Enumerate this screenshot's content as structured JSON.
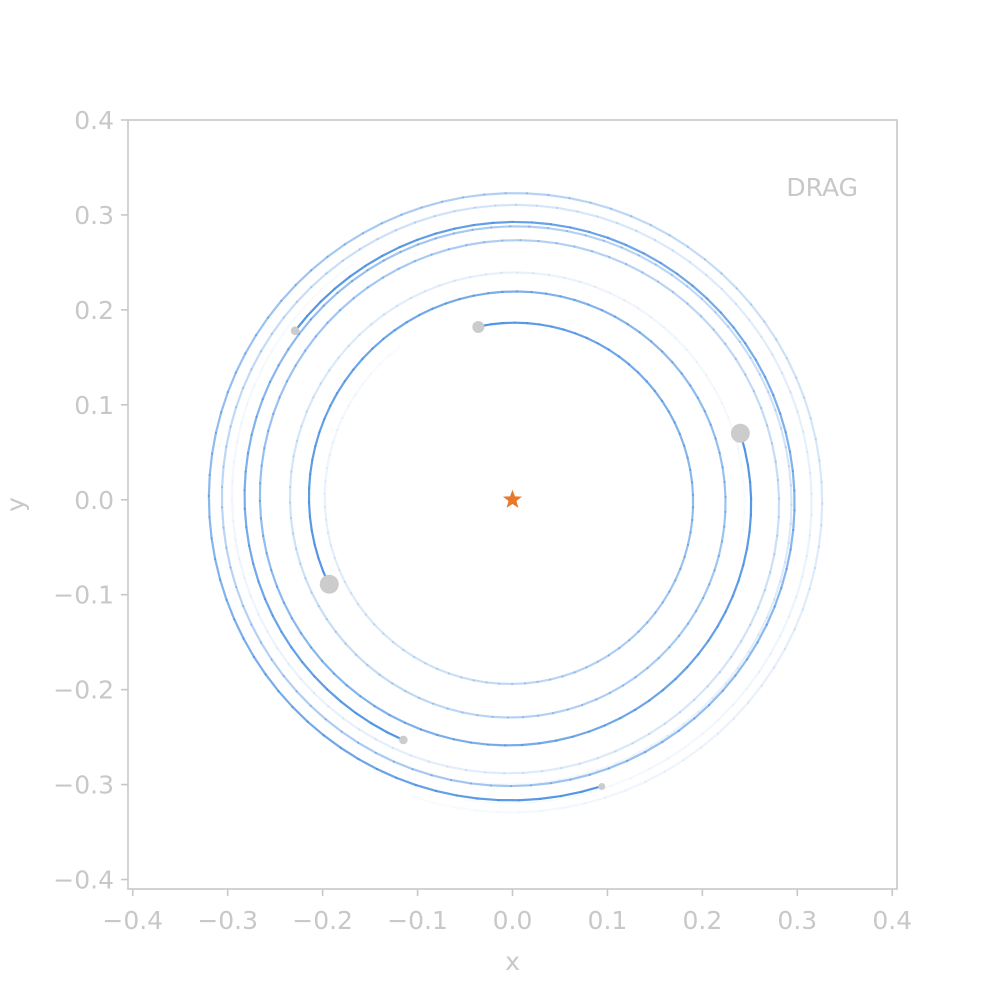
{
  "chart_data": {
    "type": "line",
    "title": "",
    "xlabel": "x",
    "ylabel": "y",
    "xlim": [
      -0.405,
      0.405
    ],
    "ylim": [
      -0.41,
      0.4
    ],
    "xticks": [
      -0.4,
      -0.3,
      -0.2,
      -0.1,
      0.0,
      0.1,
      0.2,
      0.3,
      0.4
    ],
    "yticks": [
      -0.4,
      -0.3,
      -0.2,
      -0.1,
      0.0,
      0.1,
      0.2,
      0.3,
      0.4
    ],
    "xtick_labels": [
      "−0.4",
      "−0.3",
      "−0.2",
      "−0.1",
      "0.0",
      "0.1",
      "0.2",
      "0.3",
      "0.4"
    ],
    "ytick_labels": [
      "−0.4",
      "−0.3",
      "−0.2",
      "−0.1",
      "0.0",
      "0.1",
      "0.2",
      "0.3",
      "0.4"
    ],
    "grid": false,
    "annotation": "DRAG",
    "annotation_position": "top-right",
    "star": {
      "x": 0.0,
      "y": 0.0,
      "color": "#e8782a"
    },
    "trail_color": "#4a90e2",
    "body_color": "#cccccc",
    "axis_color": "#c8c8c8",
    "bodies": [
      {
        "x": 0.24,
        "y": 0.07,
        "size": 11,
        "start_radius": 0.3,
        "end_radius": 0.25,
        "revolutions": 1.7
      },
      {
        "x": -0.193,
        "y": -0.089,
        "size": 11,
        "start_radius": 0.245,
        "end_radius": 0.213,
        "revolutions": 1.6
      },
      {
        "x": -0.036,
        "y": 0.182,
        "size": 6,
        "start_radius": 0.2,
        "end_radius": 0.186,
        "revolutions": 0.93
      },
      {
        "x": -0.229,
        "y": 0.178,
        "size": 4,
        "start_radius": 0.32,
        "end_radius": 0.29,
        "revolutions": 1.67
      },
      {
        "x": -0.115,
        "y": -0.253,
        "size": 4,
        "start_radius": 0.3,
        "end_radius": 0.278,
        "revolutions": 0.95
      },
      {
        "x": 0.094,
        "y": -0.302,
        "size": 3,
        "start_radius": 0.33,
        "end_radius": 0.316,
        "revolutions": 1.1
      }
    ]
  }
}
